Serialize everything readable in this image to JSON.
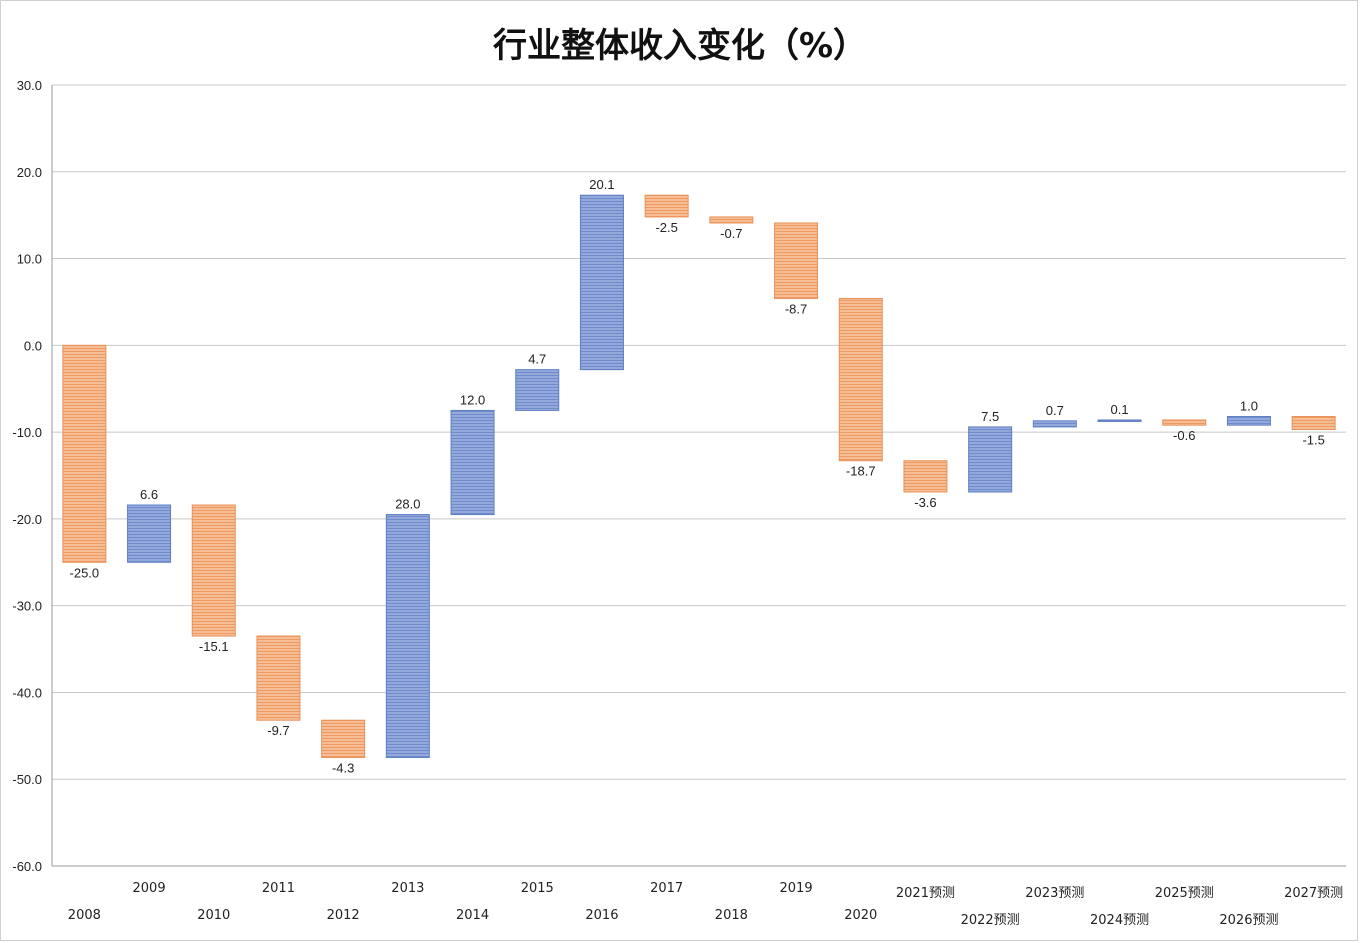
{
  "chart_data": {
    "type": "bar",
    "subtype": "waterfall",
    "title": "行业整体收入变化（%）",
    "xlabel": "",
    "ylabel": "",
    "ylim": [
      -60,
      30
    ],
    "yticks": [
      "30.0",
      "20.0",
      "10.0",
      "0.0",
      "-10.0",
      "-20.0",
      "-30.0",
      "-40.0",
      "-50.0",
      "-60.0"
    ],
    "grid": true,
    "colors": {
      "increase": "#7f9ad3",
      "decrease": "#f3a877",
      "increase_edge": "#5f7fc4",
      "decrease_edge": "#e8925a"
    },
    "categories": [
      "2008",
      "2009",
      "2010",
      "2011",
      "2012",
      "2013",
      "2014",
      "2015",
      "2016",
      "2017",
      "2018",
      "2019",
      "2020",
      "2021预测",
      "2022预测",
      "2023预测",
      "2024预测",
      "2025预测",
      "2026预测",
      "2027预测"
    ],
    "values": [
      -25.0,
      6.6,
      -15.1,
      -9.7,
      -4.3,
      28.0,
      12.0,
      4.7,
      20.1,
      -2.5,
      -0.7,
      -8.7,
      -18.7,
      -3.6,
      7.5,
      0.7,
      0.1,
      -0.6,
      1.0,
      -1.5
    ],
    "labels": [
      "-25.0",
      "6.6",
      "-15.1",
      "-9.7",
      "-4.3",
      "28.0",
      "12.0",
      "4.7",
      "20.1",
      "-2.5",
      "-0.7",
      "-8.7",
      "-18.7",
      "-3.6",
      "7.5",
      "0.7",
      "0.1",
      "-0.6",
      "1.0",
      "-1.5"
    ]
  }
}
